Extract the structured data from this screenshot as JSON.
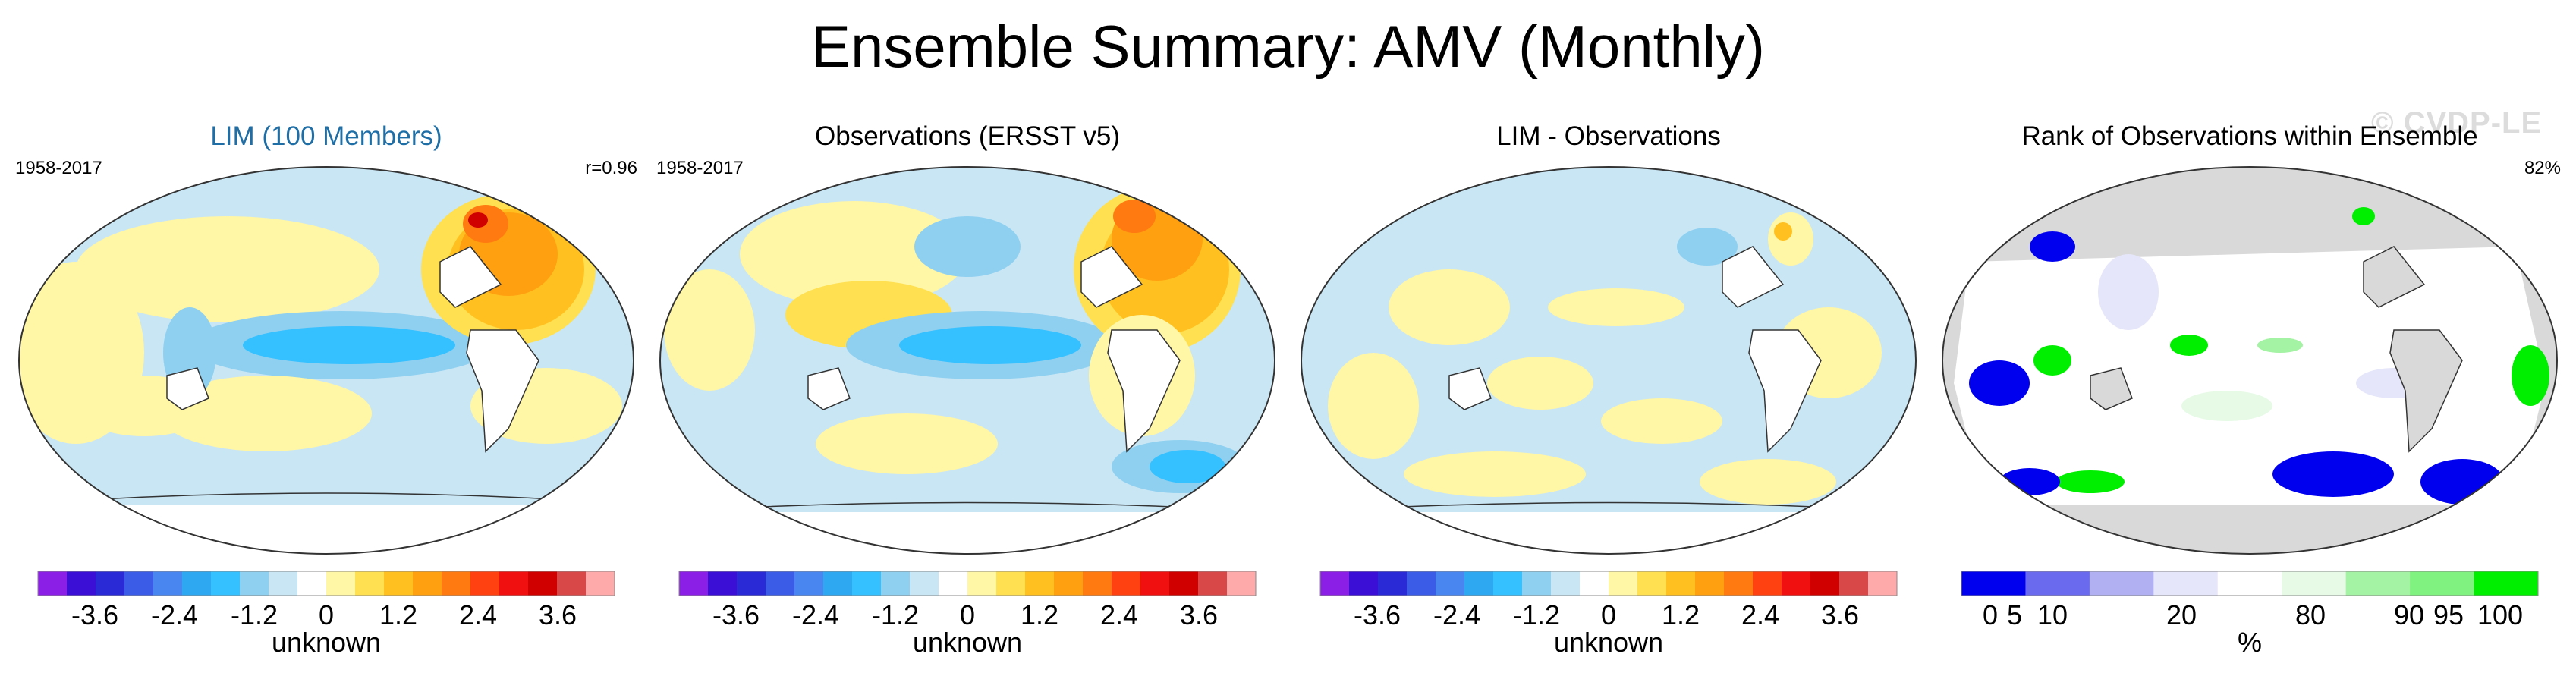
{
  "figure": {
    "title": "Ensemble Summary: AMV (Monthly)",
    "watermark": "© CVDP-LE"
  },
  "colors": {
    "anomaly_scale": [
      "#8b1fe6",
      "#3b0fd6",
      "#2a2ad6",
      "#3b5ce6",
      "#4a86f0",
      "#2ea8f0",
      "#35c0ff",
      "#8fd0f0",
      "#c9e6f5",
      "#ffffff",
      "#fff6a6",
      "#ffe050",
      "#ffc020",
      "#ffa010",
      "#ff7a10",
      "#ff4010",
      "#f01010",
      "#d00000",
      "#d84848",
      "#ffaaaa"
    ],
    "rank_scale": [
      "#0000ee",
      "#6a6aee",
      "#b0b0f2",
      "#e6e6fa",
      "#ffffff",
      "#e6fae6",
      "#a4f2a4",
      "#7ff27f",
      "#00ee00"
    ],
    "land": "#ffffff",
    "land_gray": "#d9d9d9",
    "coast": "#333333"
  },
  "panels": [
    {
      "title": "LIM (100 Members)",
      "left_label": "1958-2017",
      "right_label": "r=0.96",
      "colorbar": {
        "ticks": [
          "-3.6",
          "-2.4",
          "-1.2",
          "0",
          "1.2",
          "2.4",
          "3.6"
        ],
        "unit": "unknown"
      }
    },
    {
      "title": "Observations (ERSST v5)",
      "left_label": "1958-2017",
      "right_label": "",
      "colorbar": {
        "ticks": [
          "-3.6",
          "-2.4",
          "-1.2",
          "0",
          "1.2",
          "2.4",
          "3.6"
        ],
        "unit": "unknown"
      }
    },
    {
      "title": "LIM - Observations",
      "left_label": "",
      "right_label": "",
      "colorbar": {
        "ticks": [
          "-3.6",
          "-2.4",
          "-1.2",
          "0",
          "1.2",
          "2.4",
          "3.6"
        ],
        "unit": "unknown"
      }
    },
    {
      "title": "Rank of Observations within Ensemble",
      "left_label": "",
      "right_label": "82%",
      "colorbar": {
        "ticks": [
          "0",
          "5",
          "10",
          "20",
          "80",
          "90",
          "95",
          "100"
        ],
        "unit": "%"
      }
    }
  ]
}
